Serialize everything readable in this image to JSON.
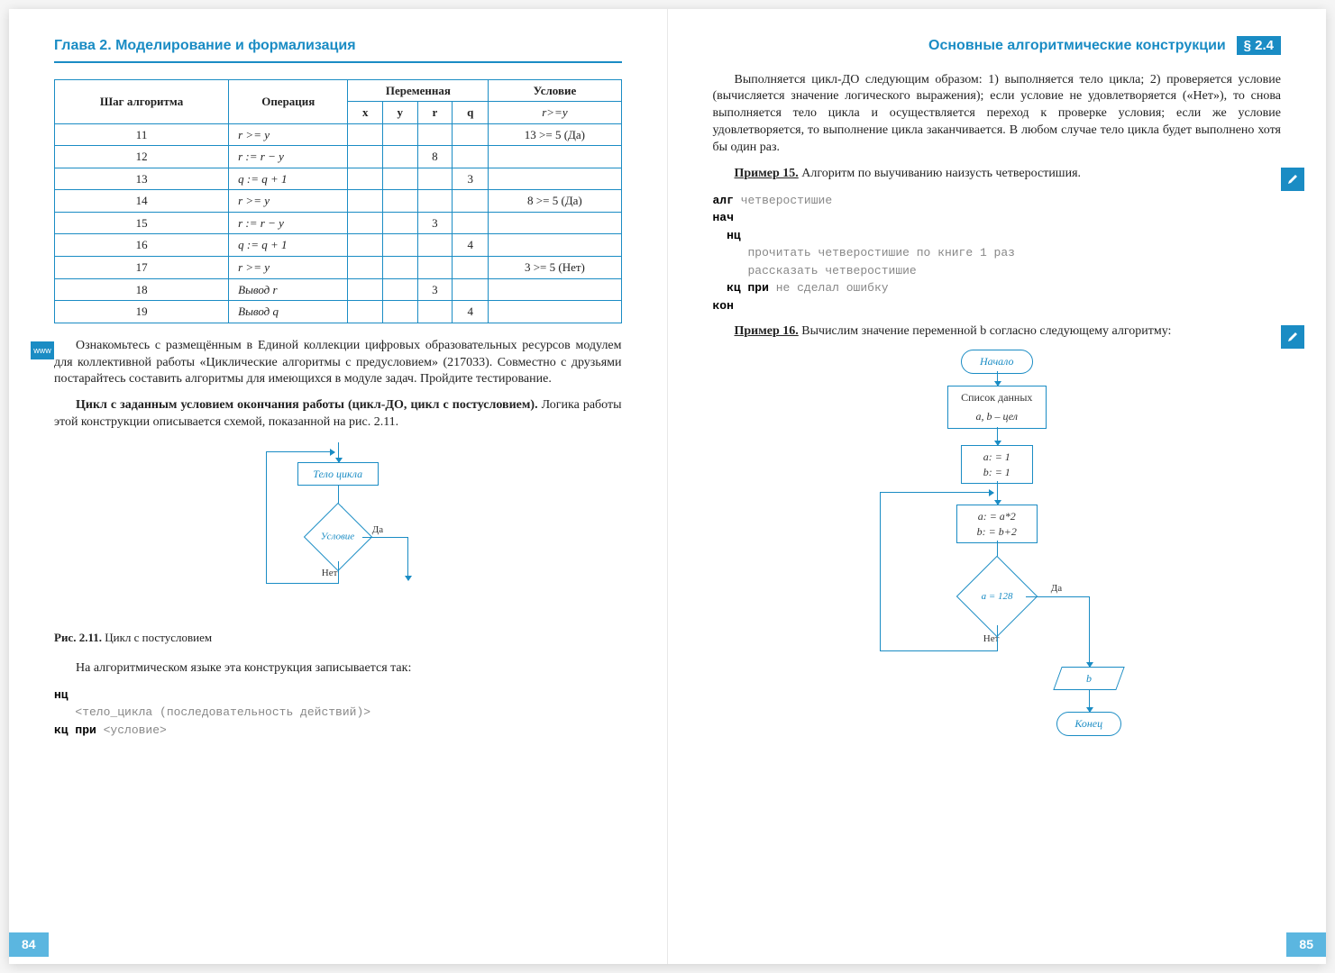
{
  "left": {
    "chapter": "Глава 2. Моделирование и формализация",
    "table": {
      "head_step": "Шаг алгоритма",
      "head_op": "Операция",
      "head_var": "Переменная",
      "head_cond": "Условие",
      "cond_sub": "r>=y",
      "vars": [
        "x",
        "y",
        "r",
        "q"
      ],
      "rows": [
        {
          "step": "11",
          "op": "r >= y",
          "x": "",
          "y": "",
          "r": "",
          "q": "",
          "cond": "13 >= 5 (Да)"
        },
        {
          "step": "12",
          "op": "r := r − y",
          "x": "",
          "y": "",
          "r": "8",
          "q": "",
          "cond": ""
        },
        {
          "step": "13",
          "op": "q := q + 1",
          "x": "",
          "y": "",
          "r": "",
          "q": "3",
          "cond": ""
        },
        {
          "step": "14",
          "op": "r >= y",
          "x": "",
          "y": "",
          "r": "",
          "q": "",
          "cond": "8 >= 5 (Да)"
        },
        {
          "step": "15",
          "op": "r := r − y",
          "x": "",
          "y": "",
          "r": "3",
          "q": "",
          "cond": ""
        },
        {
          "step": "16",
          "op": "q := q + 1",
          "x": "",
          "y": "",
          "r": "",
          "q": "4",
          "cond": ""
        },
        {
          "step": "17",
          "op": "r >= y",
          "x": "",
          "y": "",
          "r": "",
          "q": "",
          "cond": "3 >= 5 (Нет)"
        },
        {
          "step": "18",
          "op": "Вывод r",
          "x": "",
          "y": "",
          "r": "3",
          "q": "",
          "cond": ""
        },
        {
          "step": "19",
          "op": "Вывод q",
          "x": "",
          "y": "",
          "r": "",
          "q": "4",
          "cond": ""
        }
      ]
    },
    "badge_www": "www",
    "p1": "Ознакомьтесь с размещённым в Единой коллекции цифровых образовательных ресурсов модулем для коллективной работы «Циклические алгоритмы с предусловием» (217033). Совместно с друзьями постарайтесь составить алгоритмы для имеющихся в модуле задач. Пройдите тестирование.",
    "p2a": "Цикл с заданным условием окончания работы (цикл-ДО, цикл с постусловием).",
    "p2b": " Логика работы этой конструкции описывается схемой, показанной на рис. 2.11.",
    "flow1": {
      "body": "Тело цикла",
      "cond": "Условие",
      "yes": "Да",
      "no": "Нет"
    },
    "fig_label": "Рис. 2.11.",
    "fig_text": " Цикл с постусловием",
    "p3": "На алгоритмическом языке эта конструкция записывается так:",
    "code1_l1": "нц",
    "code1_l2": "   <тело_цикла (последовательность действий)>",
    "code1_l3": "кц при",
    "code1_l3b": " <условие>",
    "pagenum": "84"
  },
  "right": {
    "section": "Основные алгоритмические конструкции",
    "tag": "§ 2.4",
    "p1": "Выполняется цикл-ДО следующим образом: 1) выполняется тело цикла; 2) проверяется условие (вычисляется значение логического выражения); если условие не удовлетворяется («Нет»), то снова выполняется тело цикла и осуществляется переход к проверке условия; если же условие удовлетворяется, то выполнение цикла заканчивается. В любом случае тело цикла будет выполнено хотя бы один раз.",
    "ex15_label": "Пример 15.",
    "ex15_text": " Алгоритм по выучиванию наизусть четверостишия.",
    "code2_l1a": "алг",
    "code2_l1b": " четверостишие",
    "code2_l2": "нач",
    "code2_l3": "  нц",
    "code2_l4": "     прочитать четверостишие по книге 1 раз",
    "code2_l5": "     рассказать четверостишие",
    "code2_l6a": "  кц при",
    "code2_l6b": " не сделал ошибку",
    "code2_l7": "кон",
    "ex16_label": "Пример 16.",
    "ex16_text": " Вычислим значение переменной b согласно следующему алгоритму:",
    "flow2": {
      "start": "Начало",
      "list": "Список данных",
      "vars": "a, b – цел",
      "init": "a: = 1\nb: = 1",
      "body": "a: = a*2\nb: = b+2",
      "cond": "a = 128",
      "yes": "Да",
      "no": "Нет",
      "out": "b",
      "end": "Конец"
    },
    "pagenum": "85"
  }
}
